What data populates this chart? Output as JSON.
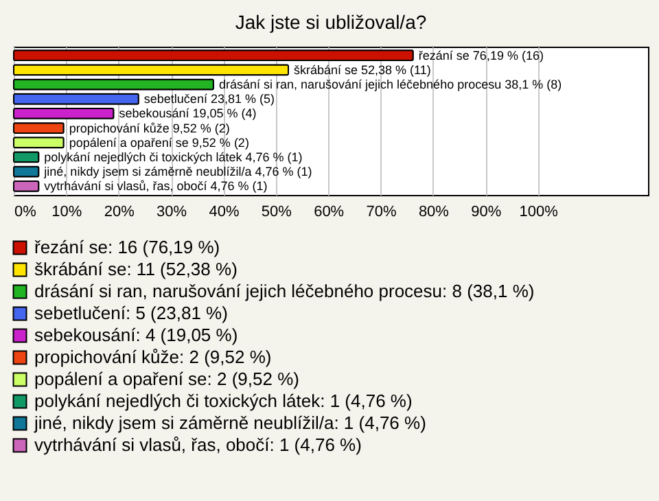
{
  "chart_data": {
    "type": "bar",
    "orientation": "horizontal",
    "title": "Jak jste si ubližoval/a?",
    "categories": [
      null,
      null,
      null,
      null,
      null,
      null,
      null,
      null,
      null,
      null
    ],
    "series": [
      {
        "name": "řezání se: 16 (76,19 %)",
        "color": "#cc1100",
        "values": [
          76.19,
          null,
          null,
          null,
          null,
          null,
          null,
          null,
          null,
          null
        ],
        "value_labels": [
          "řezání se 76,19 % (16)",
          null,
          null,
          null,
          null,
          null,
          null,
          null,
          null,
          null
        ]
      },
      {
        "name": "škrábání se: 11 (52,38 %)",
        "color": "#ffe400",
        "values": [
          null,
          52.38,
          null,
          null,
          null,
          null,
          null,
          null,
          null,
          null
        ],
        "value_labels": [
          null,
          "škrábání se 52,38 % (11)",
          null,
          null,
          null,
          null,
          null,
          null,
          null,
          null
        ]
      },
      {
        "name": "drásání si ran, narušování jejich léčebného procesu: 8 (38,1 %)",
        "color": "#22b422",
        "values": [
          null,
          null,
          38.1,
          null,
          null,
          null,
          null,
          null,
          null,
          null
        ],
        "value_labels": [
          null,
          null,
          "drásání si ran, narušování jejich léčebného procesu 38,1 % (8)",
          null,
          null,
          null,
          null,
          null,
          null,
          null
        ]
      },
      {
        "name": "sebetlučení: 5 (23,81 %)",
        "color": "#4466ee",
        "values": [
          null,
          null,
          null,
          23.81,
          null,
          null,
          null,
          null,
          null,
          null
        ],
        "value_labels": [
          null,
          null,
          null,
          "sebetlučení 23,81 % (5)",
          null,
          null,
          null,
          null,
          null,
          null
        ]
      },
      {
        "name": "sebekousání: 4 (19,05 %)",
        "color": "#cc22cc",
        "values": [
          null,
          null,
          null,
          null,
          19.05,
          null,
          null,
          null,
          null,
          null
        ],
        "value_labels": [
          null,
          null,
          null,
          null,
          "sebekousání 19,05 % (4)",
          null,
          null,
          null,
          null,
          null
        ]
      },
      {
        "name": "propichování kůže: 2 (9,52 %)",
        "color": "#ee4411",
        "values": [
          null,
          null,
          null,
          null,
          null,
          9.52,
          null,
          null,
          null,
          null
        ],
        "value_labels": [
          null,
          null,
          null,
          null,
          null,
          "propichování kůže 9,52 % (2)",
          null,
          null,
          null,
          null
        ]
      },
      {
        "name": "popálení a opaření se: 2 (9,52 %)",
        "color": "#ccff66",
        "values": [
          null,
          null,
          null,
          null,
          null,
          null,
          9.52,
          null,
          null,
          null
        ],
        "value_labels": [
          null,
          null,
          null,
          null,
          null,
          null,
          "popálení a opaření se 9,52 % (2)",
          null,
          null,
          null
        ]
      },
      {
        "name": "polykání nejedlých či toxických látek: 1 (4,76 %)",
        "color": "#119966",
        "values": [
          null,
          null,
          null,
          null,
          null,
          null,
          null,
          4.76,
          null,
          null
        ],
        "value_labels": [
          null,
          null,
          null,
          null,
          null,
          null,
          null,
          "polykání nejedlých či toxických látek 4,76 % (1)",
          null,
          null
        ]
      },
      {
        "name": "jiné, nikdy jsem si záměrně neublížil/a: 1 (4,76 %)",
        "color": "#117799",
        "values": [
          null,
          null,
          null,
          null,
          null,
          null,
          null,
          null,
          4.76,
          null
        ],
        "value_labels": [
          null,
          null,
          null,
          null,
          null,
          null,
          null,
          null,
          "jiné, nikdy jsem si záměrně neublížil/a 4,76 % (1)",
          null
        ]
      },
      {
        "name": "vytrhávání si vlasů, řas, obočí: 1 (4,76 %)",
        "color": "#cc66bb",
        "values": [
          null,
          null,
          null,
          null,
          null,
          null,
          null,
          null,
          null,
          4.76
        ],
        "value_labels": [
          null,
          null,
          null,
          null,
          null,
          null,
          null,
          null,
          null,
          "vytrhávání si vlasů, řas, obočí 4,76 % (1)"
        ]
      }
    ],
    "xlim": [
      0,
      121
    ],
    "xticks": [
      {
        "value": 0,
        "label": "0%"
      },
      {
        "value": 10,
        "label": "10%"
      },
      {
        "value": 20,
        "label": "20%"
      },
      {
        "value": 30,
        "label": "30%"
      },
      {
        "value": 40,
        "label": "40%"
      },
      {
        "value": 50,
        "label": "50%"
      },
      {
        "value": 60,
        "label": "60%"
      },
      {
        "value": 70,
        "label": "70%"
      },
      {
        "value": 80,
        "label": "80%"
      },
      {
        "value": 90,
        "label": "90%"
      },
      {
        "value": 100,
        "label": "100%"
      }
    ],
    "grid": "x",
    "legend": "bottom",
    "tick_labels": "x"
  }
}
